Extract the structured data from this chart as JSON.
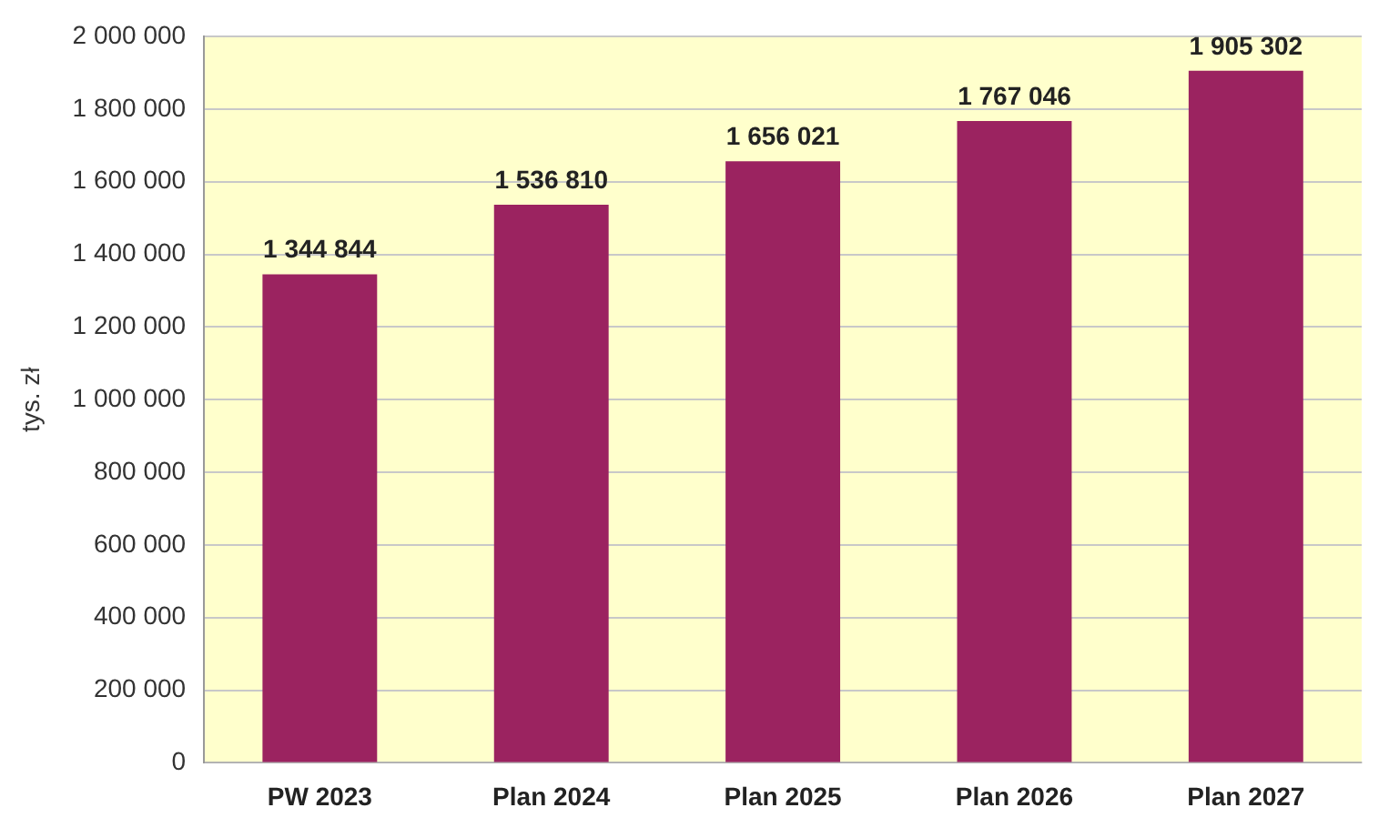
{
  "chart_data": {
    "type": "bar",
    "ylabel": "tys. zł",
    "categories": [
      "PW 2023",
      "Plan 2024",
      "Plan 2025",
      "Plan 2026",
      "Plan 2027"
    ],
    "values": [
      1344844,
      1536810,
      1656021,
      1767046,
      1905302
    ],
    "value_labels": [
      "1 344 844",
      "1 536 810",
      "1 656 021",
      "1 767 046",
      "1 905 302"
    ],
    "color": "#9b2360",
    "ylim": [
      0,
      2000000
    ],
    "yticks": [
      {
        "value": 0,
        "label": "0"
      },
      {
        "value": 200000,
        "label": "200 000"
      },
      {
        "value": 400000,
        "label": "400 000"
      },
      {
        "value": 600000,
        "label": "600 000"
      },
      {
        "value": 800000,
        "label": "800 000"
      },
      {
        "value": 1000000,
        "label": "1 000 000"
      },
      {
        "value": 1200000,
        "label": "1 200 000"
      },
      {
        "value": 1400000,
        "label": "1 400 000"
      },
      {
        "value": 1600000,
        "label": "1 600 000"
      },
      {
        "value": 1800000,
        "label": "1 800 000"
      },
      {
        "value": 2000000,
        "label": "2 000 000"
      }
    ],
    "grid": "y"
  }
}
